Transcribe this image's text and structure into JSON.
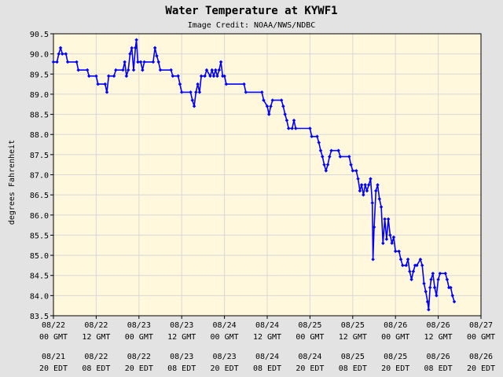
{
  "chart_data": {
    "type": "line",
    "title": "Water Temperature at KYWF1",
    "subtitle": "Image Credit: NOAA/NWS/NDBC",
    "ylabel": "degrees Fahrenheit",
    "xlabel": "",
    "ylim": [
      83.5,
      90.5
    ],
    "xlim": [
      0,
      120
    ],
    "grid": true,
    "yticks": [
      "83.5",
      "84.0",
      "84.5",
      "85.0",
      "85.5",
      "86.0",
      "86.5",
      "87.0",
      "87.5",
      "88.0",
      "88.5",
      "89.0",
      "89.5",
      "90.0",
      "90.5"
    ],
    "xticks": [
      {
        "h": 0,
        "gmt_date": "08/22",
        "gmt_time": "00 GMT",
        "edt_date": "08/21",
        "edt_time": "20 EDT"
      },
      {
        "h": 12,
        "gmt_date": "08/22",
        "gmt_time": "12 GMT",
        "edt_date": "08/22",
        "edt_time": "08 EDT"
      },
      {
        "h": 24,
        "gmt_date": "08/23",
        "gmt_time": "00 GMT",
        "edt_date": "08/22",
        "edt_time": "20 EDT"
      },
      {
        "h": 36,
        "gmt_date": "08/23",
        "gmt_time": "12 GMT",
        "edt_date": "08/23",
        "edt_time": "08 EDT"
      },
      {
        "h": 48,
        "gmt_date": "08/24",
        "gmt_time": "00 GMT",
        "edt_date": "08/23",
        "edt_time": "20 EDT"
      },
      {
        "h": 60,
        "gmt_date": "08/24",
        "gmt_time": "12 GMT",
        "edt_date": "08/24",
        "edt_time": "08 EDT"
      },
      {
        "h": 72,
        "gmt_date": "08/25",
        "gmt_time": "00 GMT",
        "edt_date": "08/24",
        "edt_time": "20 EDT"
      },
      {
        "h": 84,
        "gmt_date": "08/25",
        "gmt_time": "12 GMT",
        "edt_date": "08/25",
        "edt_time": "08 EDT"
      },
      {
        "h": 96,
        "gmt_date": "08/26",
        "gmt_time": "00 GMT",
        "edt_date": "08/25",
        "edt_time": "20 EDT"
      },
      {
        "h": 108,
        "gmt_date": "08/26",
        "gmt_time": "12 GMT",
        "edt_date": "08/26",
        "edt_time": "08 EDT"
      },
      {
        "h": 120,
        "gmt_date": "08/27",
        "gmt_time": "00 GMT",
        "edt_date": "08/26",
        "edt_time": "20 EDT"
      }
    ],
    "series": [
      {
        "color": "#0000ff",
        "points": [
          [
            0,
            89.8
          ],
          [
            1,
            89.8
          ],
          [
            1.5,
            90.0
          ],
          [
            2,
            90.15
          ],
          [
            2.5,
            90.0
          ],
          [
            3.5,
            90.0
          ],
          [
            4,
            89.8
          ],
          [
            6.5,
            89.8
          ],
          [
            7,
            89.6
          ],
          [
            9.5,
            89.6
          ],
          [
            10,
            89.45
          ],
          [
            12,
            89.45
          ],
          [
            12.5,
            89.25
          ],
          [
            14.5,
            89.25
          ],
          [
            15,
            89.05
          ],
          [
            15.5,
            89.45
          ],
          [
            17,
            89.45
          ],
          [
            17.5,
            89.6
          ],
          [
            19.5,
            89.6
          ],
          [
            20,
            89.8
          ],
          [
            20.5,
            89.45
          ],
          [
            21,
            89.6
          ],
          [
            21.5,
            90.0
          ],
          [
            22,
            90.15
          ],
          [
            22.5,
            89.6
          ],
          [
            23,
            90.15
          ],
          [
            23.3,
            90.35
          ],
          [
            23.7,
            89.8
          ],
          [
            24.5,
            89.8
          ],
          [
            25,
            89.6
          ],
          [
            25.5,
            89.8
          ],
          [
            28,
            89.8
          ],
          [
            28.5,
            90.15
          ],
          [
            29,
            89.95
          ],
          [
            29.5,
            89.8
          ],
          [
            30,
            89.6
          ],
          [
            33,
            89.6
          ],
          [
            33.5,
            89.45
          ],
          [
            35,
            89.45
          ],
          [
            35.5,
            89.25
          ],
          [
            36,
            89.05
          ],
          [
            38.5,
            89.05
          ],
          [
            39,
            88.85
          ],
          [
            39.5,
            88.7
          ],
          [
            40,
            89.05
          ],
          [
            40.5,
            89.25
          ],
          [
            41,
            89.05
          ],
          [
            41.5,
            89.45
          ],
          [
            42.5,
            89.45
          ],
          [
            43,
            89.6
          ],
          [
            44,
            89.45
          ],
          [
            44.5,
            89.6
          ],
          [
            45,
            89.45
          ],
          [
            45.5,
            89.6
          ],
          [
            46,
            89.45
          ],
          [
            46.5,
            89.6
          ],
          [
            47,
            89.8
          ],
          [
            47.5,
            89.45
          ],
          [
            48,
            89.45
          ],
          [
            48.5,
            89.25
          ],
          [
            53.5,
            89.25
          ],
          [
            54,
            89.05
          ],
          [
            58.5,
            89.05
          ],
          [
            59,
            88.85
          ],
          [
            60,
            88.7
          ],
          [
            60.5,
            88.5
          ],
          [
            61,
            88.7
          ],
          [
            61.5,
            88.85
          ],
          [
            64,
            88.85
          ],
          [
            64.5,
            88.7
          ],
          [
            65,
            88.5
          ],
          [
            65.5,
            88.35
          ],
          [
            66,
            88.15
          ],
          [
            67,
            88.15
          ],
          [
            67.5,
            88.35
          ],
          [
            68,
            88.15
          ],
          [
            72,
            88.15
          ],
          [
            72.5,
            87.95
          ],
          [
            74,
            87.95
          ],
          [
            74.5,
            87.8
          ],
          [
            75,
            87.6
          ],
          [
            75.5,
            87.45
          ],
          [
            76,
            87.25
          ],
          [
            76.5,
            87.1
          ],
          [
            77,
            87.25
          ],
          [
            77.5,
            87.45
          ],
          [
            78,
            87.6
          ],
          [
            80,
            87.6
          ],
          [
            80.5,
            87.45
          ],
          [
            83,
            87.45
          ],
          [
            83.5,
            87.25
          ],
          [
            84,
            87.1
          ],
          [
            85,
            87.1
          ],
          [
            85.5,
            86.9
          ],
          [
            86,
            86.6
          ],
          [
            86.5,
            86.75
          ],
          [
            87,
            86.5
          ],
          [
            87.5,
            86.75
          ],
          [
            88,
            86.6
          ],
          [
            88.5,
            86.75
          ],
          [
            89,
            86.9
          ],
          [
            89.5,
            86.3
          ],
          [
            89.7,
            84.9
          ],
          [
            90,
            85.7
          ],
          [
            90.5,
            86.6
          ],
          [
            91,
            86.75
          ],
          [
            91.5,
            86.4
          ],
          [
            92,
            86.2
          ],
          [
            92.5,
            85.3
          ],
          [
            93,
            85.9
          ],
          [
            93.5,
            85.4
          ],
          [
            94,
            85.9
          ],
          [
            94.5,
            85.5
          ],
          [
            95,
            85.3
          ],
          [
            95.5,
            85.45
          ],
          [
            96,
            85.1
          ],
          [
            97,
            85.1
          ],
          [
            97.5,
            84.9
          ],
          [
            98,
            84.75
          ],
          [
            99,
            84.75
          ],
          [
            99.5,
            84.9
          ],
          [
            100,
            84.6
          ],
          [
            100.5,
            84.4
          ],
          [
            101,
            84.6
          ],
          [
            101.5,
            84.75
          ],
          [
            102,
            84.75
          ],
          [
            103,
            84.9
          ],
          [
            103.5,
            84.75
          ],
          [
            104,
            84.3
          ],
          [
            104.5,
            84.1
          ],
          [
            105,
            83.85
          ],
          [
            105.3,
            83.65
          ],
          [
            105.7,
            84.2
          ],
          [
            106,
            84.4
          ],
          [
            106.5,
            84.55
          ],
          [
            107,
            84.2
          ],
          [
            107.5,
            84.0
          ],
          [
            108,
            84.4
          ],
          [
            108.5,
            84.55
          ],
          [
            110,
            84.55
          ],
          [
            110.5,
            84.4
          ],
          [
            111,
            84.2
          ],
          [
            111.5,
            84.2
          ],
          [
            112,
            84.0
          ],
          [
            112.5,
            83.85
          ]
        ]
      }
    ]
  }
}
